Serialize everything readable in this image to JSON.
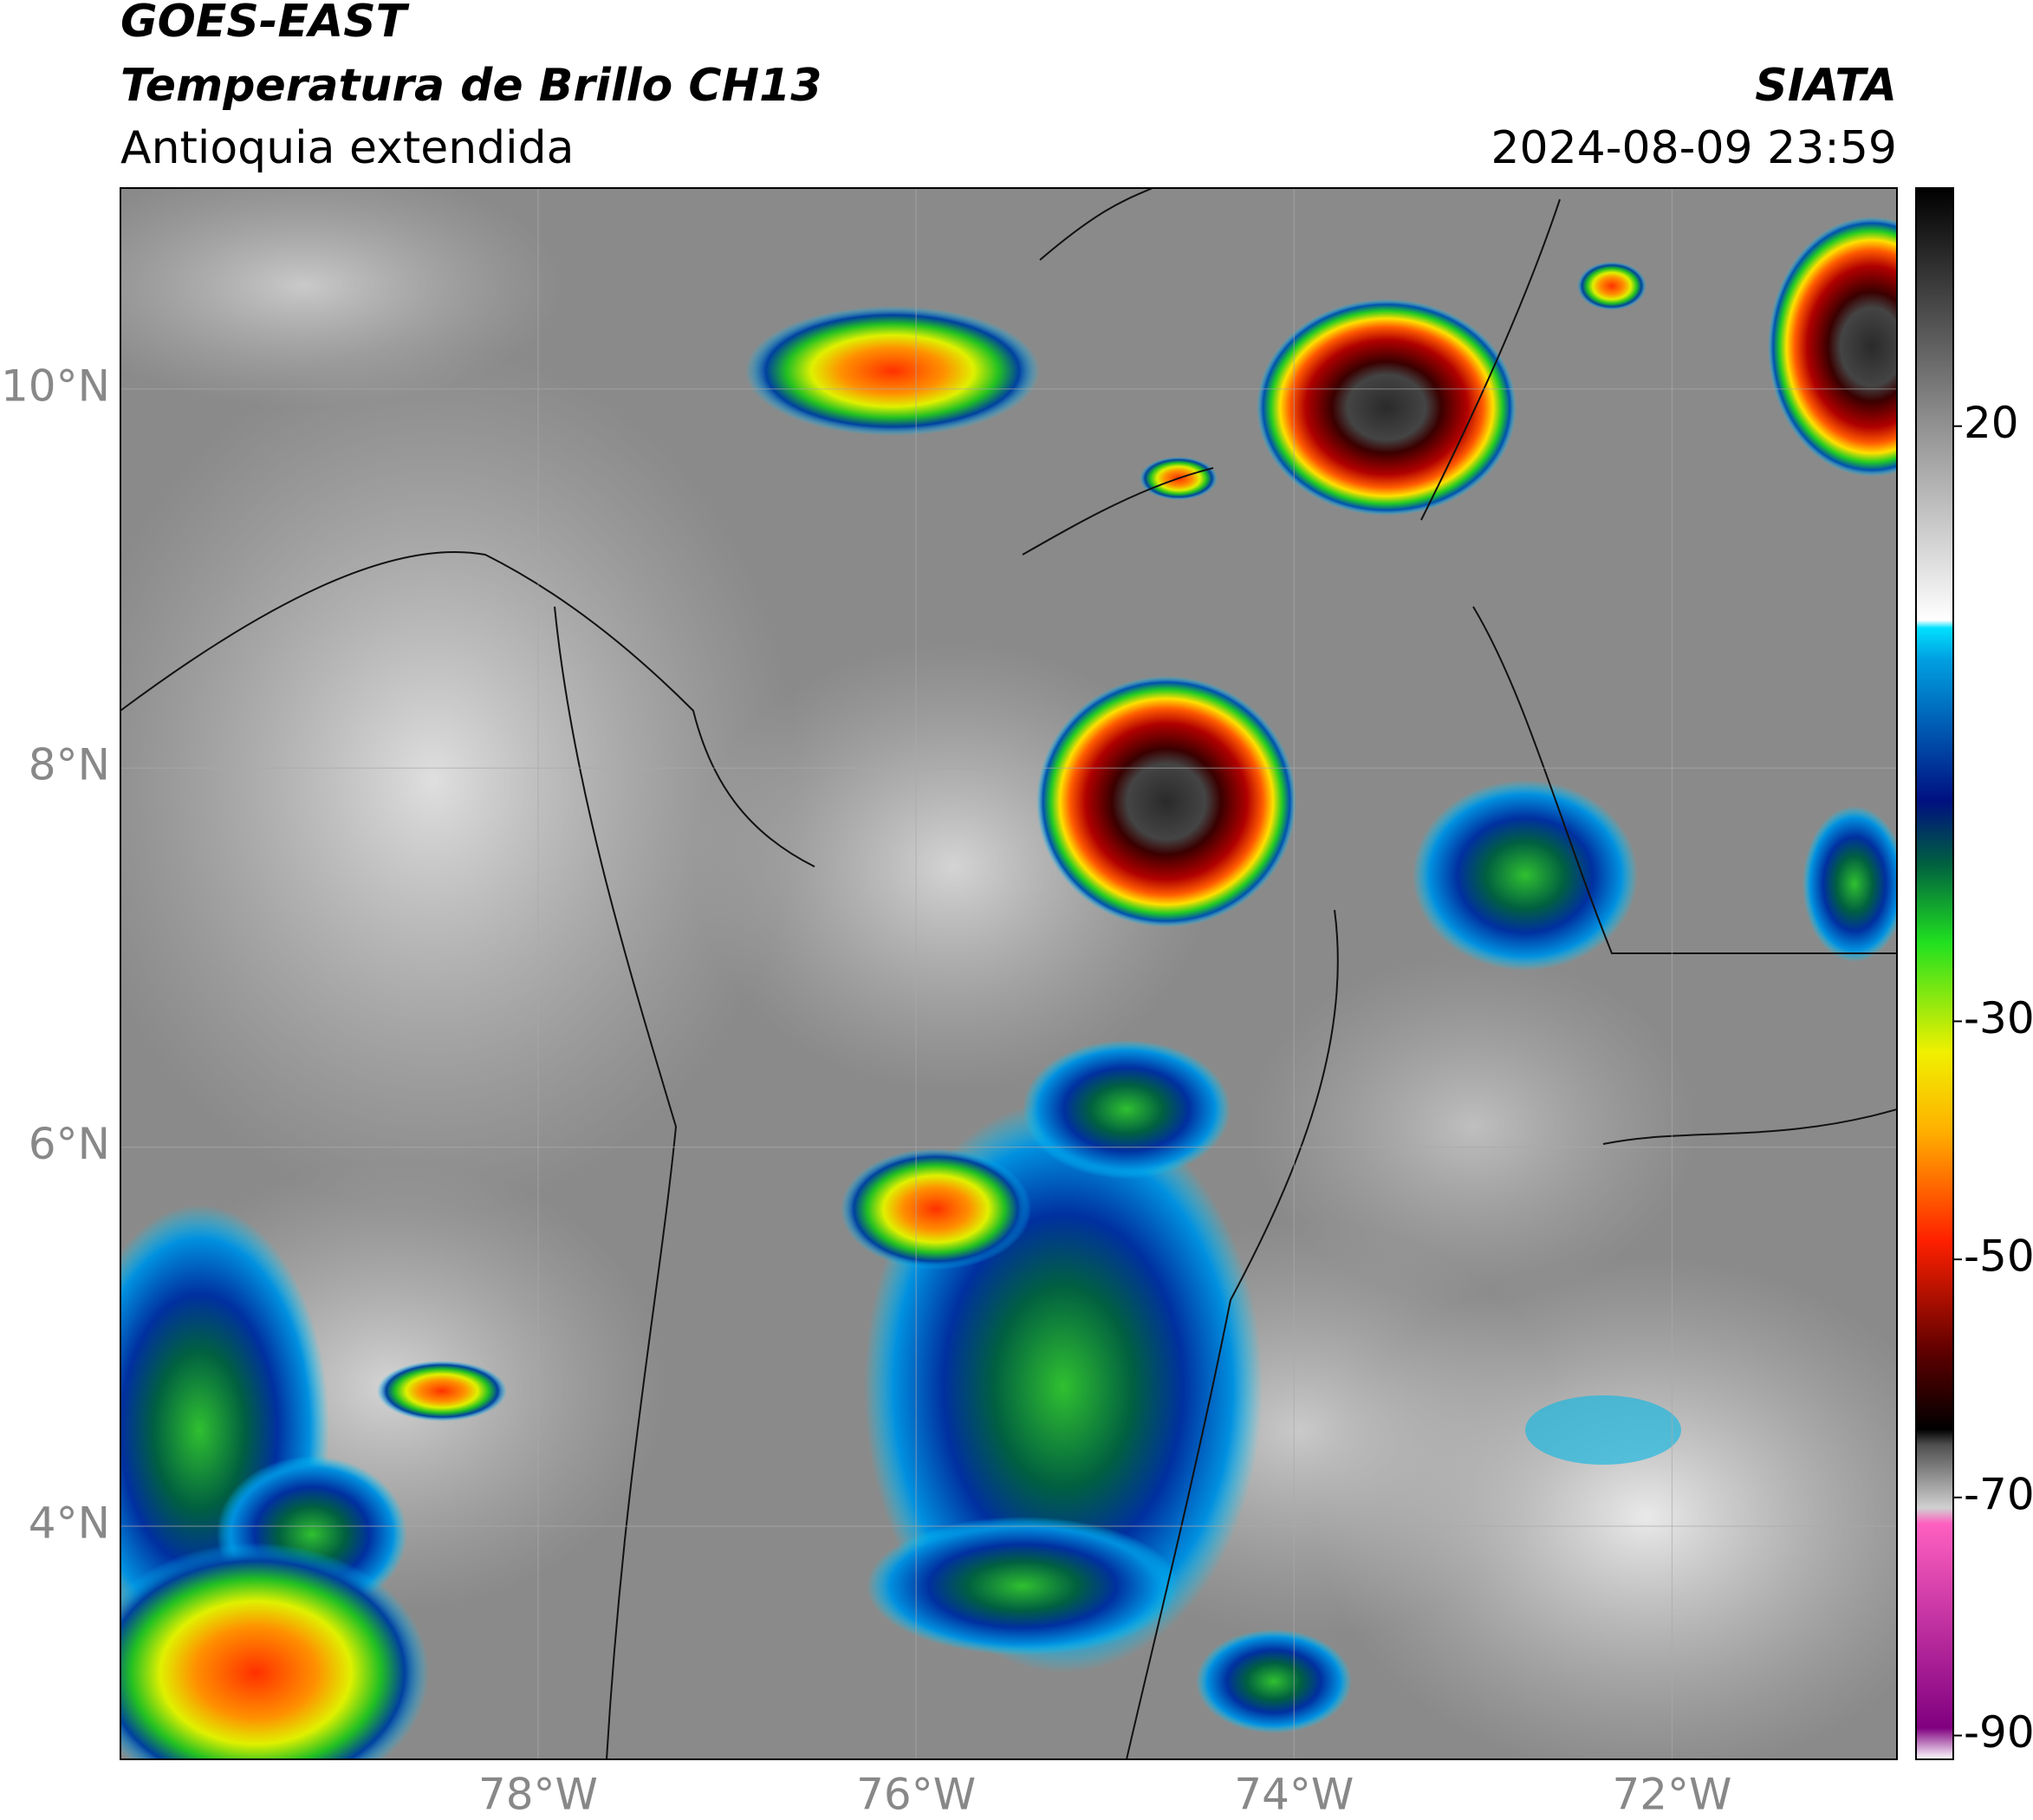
{
  "header": {
    "satellite": "GOES-EAST",
    "product": "Temperatura de Brillo CH13",
    "region": "Antioquia extendida",
    "brand": "SIATA",
    "datetime": "2024-08-09 23:59"
  },
  "map": {
    "xlim": [
      -80.21,
      -70.81
    ],
    "ylim": [
      2.77,
      11.06
    ],
    "xticks": [
      {
        "value": -78,
        "label": "78°W"
      },
      {
        "value": -76,
        "label": "76°W"
      },
      {
        "value": -74,
        "label": "74°W"
      },
      {
        "value": -72,
        "label": "72°W"
      }
    ],
    "yticks": [
      {
        "value": 10,
        "label": "10°N"
      },
      {
        "value": 8,
        "label": "8°N"
      },
      {
        "value": 6,
        "label": "6°N"
      },
      {
        "value": 4,
        "label": "4°N"
      }
    ]
  },
  "colorbar": {
    "lim": [
      -92,
      40
    ],
    "ticks": [
      20,
      -30,
      -50,
      -70,
      -90
    ]
  }
}
